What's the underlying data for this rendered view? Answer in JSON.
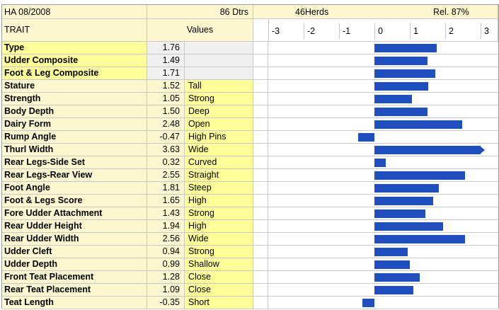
{
  "header": {
    "left": "HA 08/2008",
    "dtrs": "86 Dtrs",
    "herds": "46Herds",
    "rel": "Rel. 87%",
    "trait_col": "TRAIT",
    "values_col": "Values"
  },
  "colors": {
    "bar": "#1f4fbe",
    "yellow": "#ffff99",
    "light": "#fdf7cf"
  },
  "chart_data": {
    "type": "bar",
    "orientation": "horizontal",
    "xlim": [
      -3,
      3
    ],
    "ticks": [
      "-3",
      "-2",
      "-1",
      "0",
      "1",
      "2",
      "3"
    ],
    "categories": [
      "Type",
      "Udder Composite",
      "Foot & Leg Composite",
      "Stature",
      "Strength",
      "Body Depth",
      "Dairy Form",
      "Rump Angle",
      "Thurl Width",
      "Rear Legs-Side Set",
      "Rear Legs-Rear View",
      "Foot Angle",
      "Foot & Legs Score",
      "Fore Udder Attachment",
      "Rear Udder Height",
      "Rear Udder Width",
      "Udder Cleft",
      "Udder Depth",
      "Front Teat Placement",
      "Rear Teat Placement",
      "Teat Length"
    ],
    "values": [
      1.76,
      1.49,
      1.71,
      1.52,
      1.05,
      1.5,
      2.48,
      -0.47,
      3.63,
      0.32,
      2.55,
      1.81,
      1.65,
      1.43,
      1.94,
      2.56,
      0.94,
      0.99,
      1.28,
      1.09,
      -0.35
    ],
    "values_text": [
      "1.76",
      "1.49",
      "1.71",
      "1.52",
      "1.05",
      "1.50",
      "2.48",
      "-0.47",
      "3.63",
      "0.32",
      "2.55",
      "1.81",
      "1.65",
      "1.43",
      "1.94",
      "2.56",
      "0.94",
      "0.99",
      "1.28",
      "1.09",
      "-0.35"
    ],
    "descriptions": [
      "",
      "",
      "",
      "Tall",
      "Strong",
      "Deep",
      "Open",
      "High Pins",
      "Wide",
      "Curved",
      "Straight",
      "Steep",
      "High",
      "Strong",
      "High",
      "Wide",
      "Strong",
      "Shallow",
      "Close",
      "Close",
      "Short"
    ]
  }
}
